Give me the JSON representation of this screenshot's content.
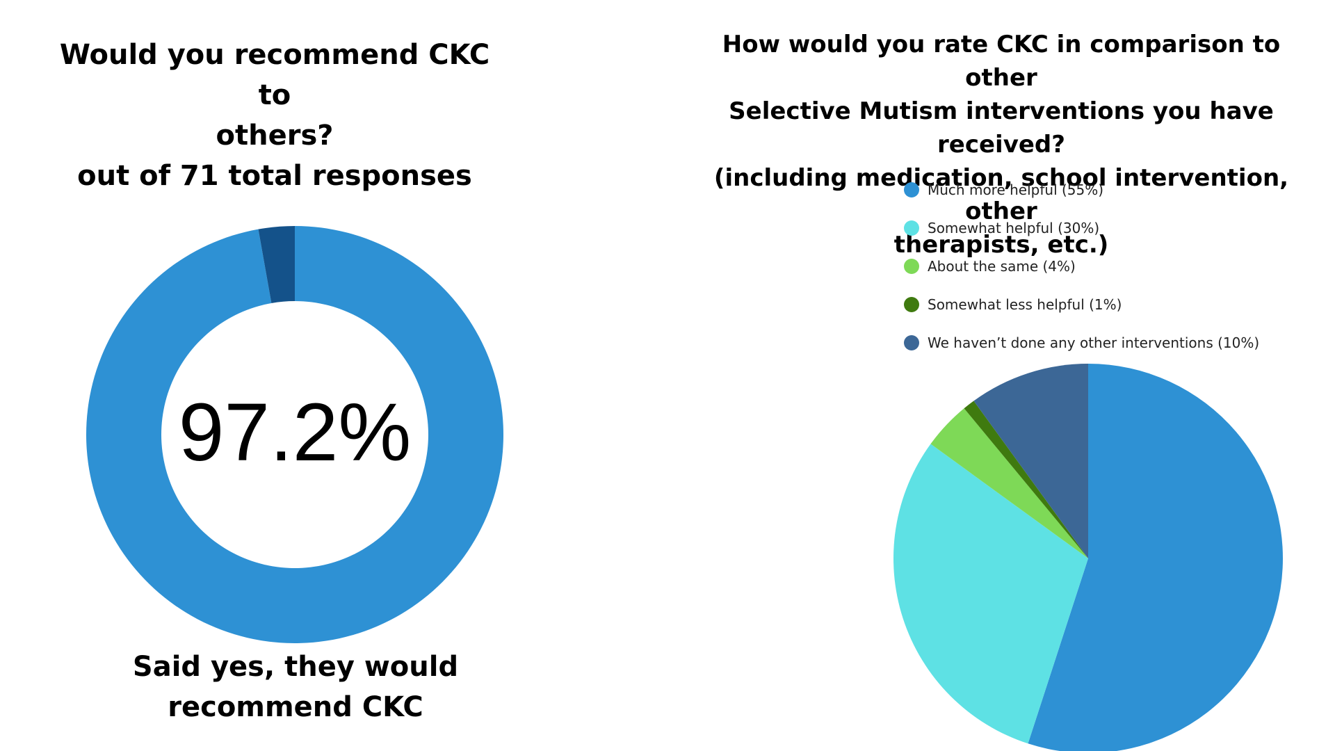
{
  "chart_data": [
    {
      "type": "pie",
      "variant": "donut",
      "title_lines": [
        "Would you recommend CKC to",
        "others?",
        "out of 71 total responses"
      ],
      "center_label": "97.2%",
      "caption_lines": [
        "Said yes, they would",
        "recommend CKC"
      ],
      "slices": [
        {
          "value": 97.2,
          "color": "#2E91D4"
        },
        {
          "value": 2.8,
          "color": "#14528A"
        }
      ]
    },
    {
      "type": "pie",
      "title_lines": [
        "How would you rate CKC in comparison to other",
        "Selective Mutism interventions you have received?",
        "(including medication, school intervention, other",
        "therapists, etc.)"
      ],
      "legend_position": "top",
      "slices": [
        {
          "label": "Much more helpful (55%)",
          "value": 55,
          "color": "#2E91D4"
        },
        {
          "label": "Somewhat helpful (30%)",
          "value": 30,
          "color": "#5EE1E4"
        },
        {
          "label": "About the same (4%)",
          "value": 4,
          "color": "#7ED957"
        },
        {
          "label": "Somewhat less helpful (1%)",
          "value": 1,
          "color": "#3F7A0F"
        },
        {
          "label": "We haven’t done any other interventions (10%)",
          "value": 10,
          "color": "#3C6796"
        }
      ]
    }
  ]
}
